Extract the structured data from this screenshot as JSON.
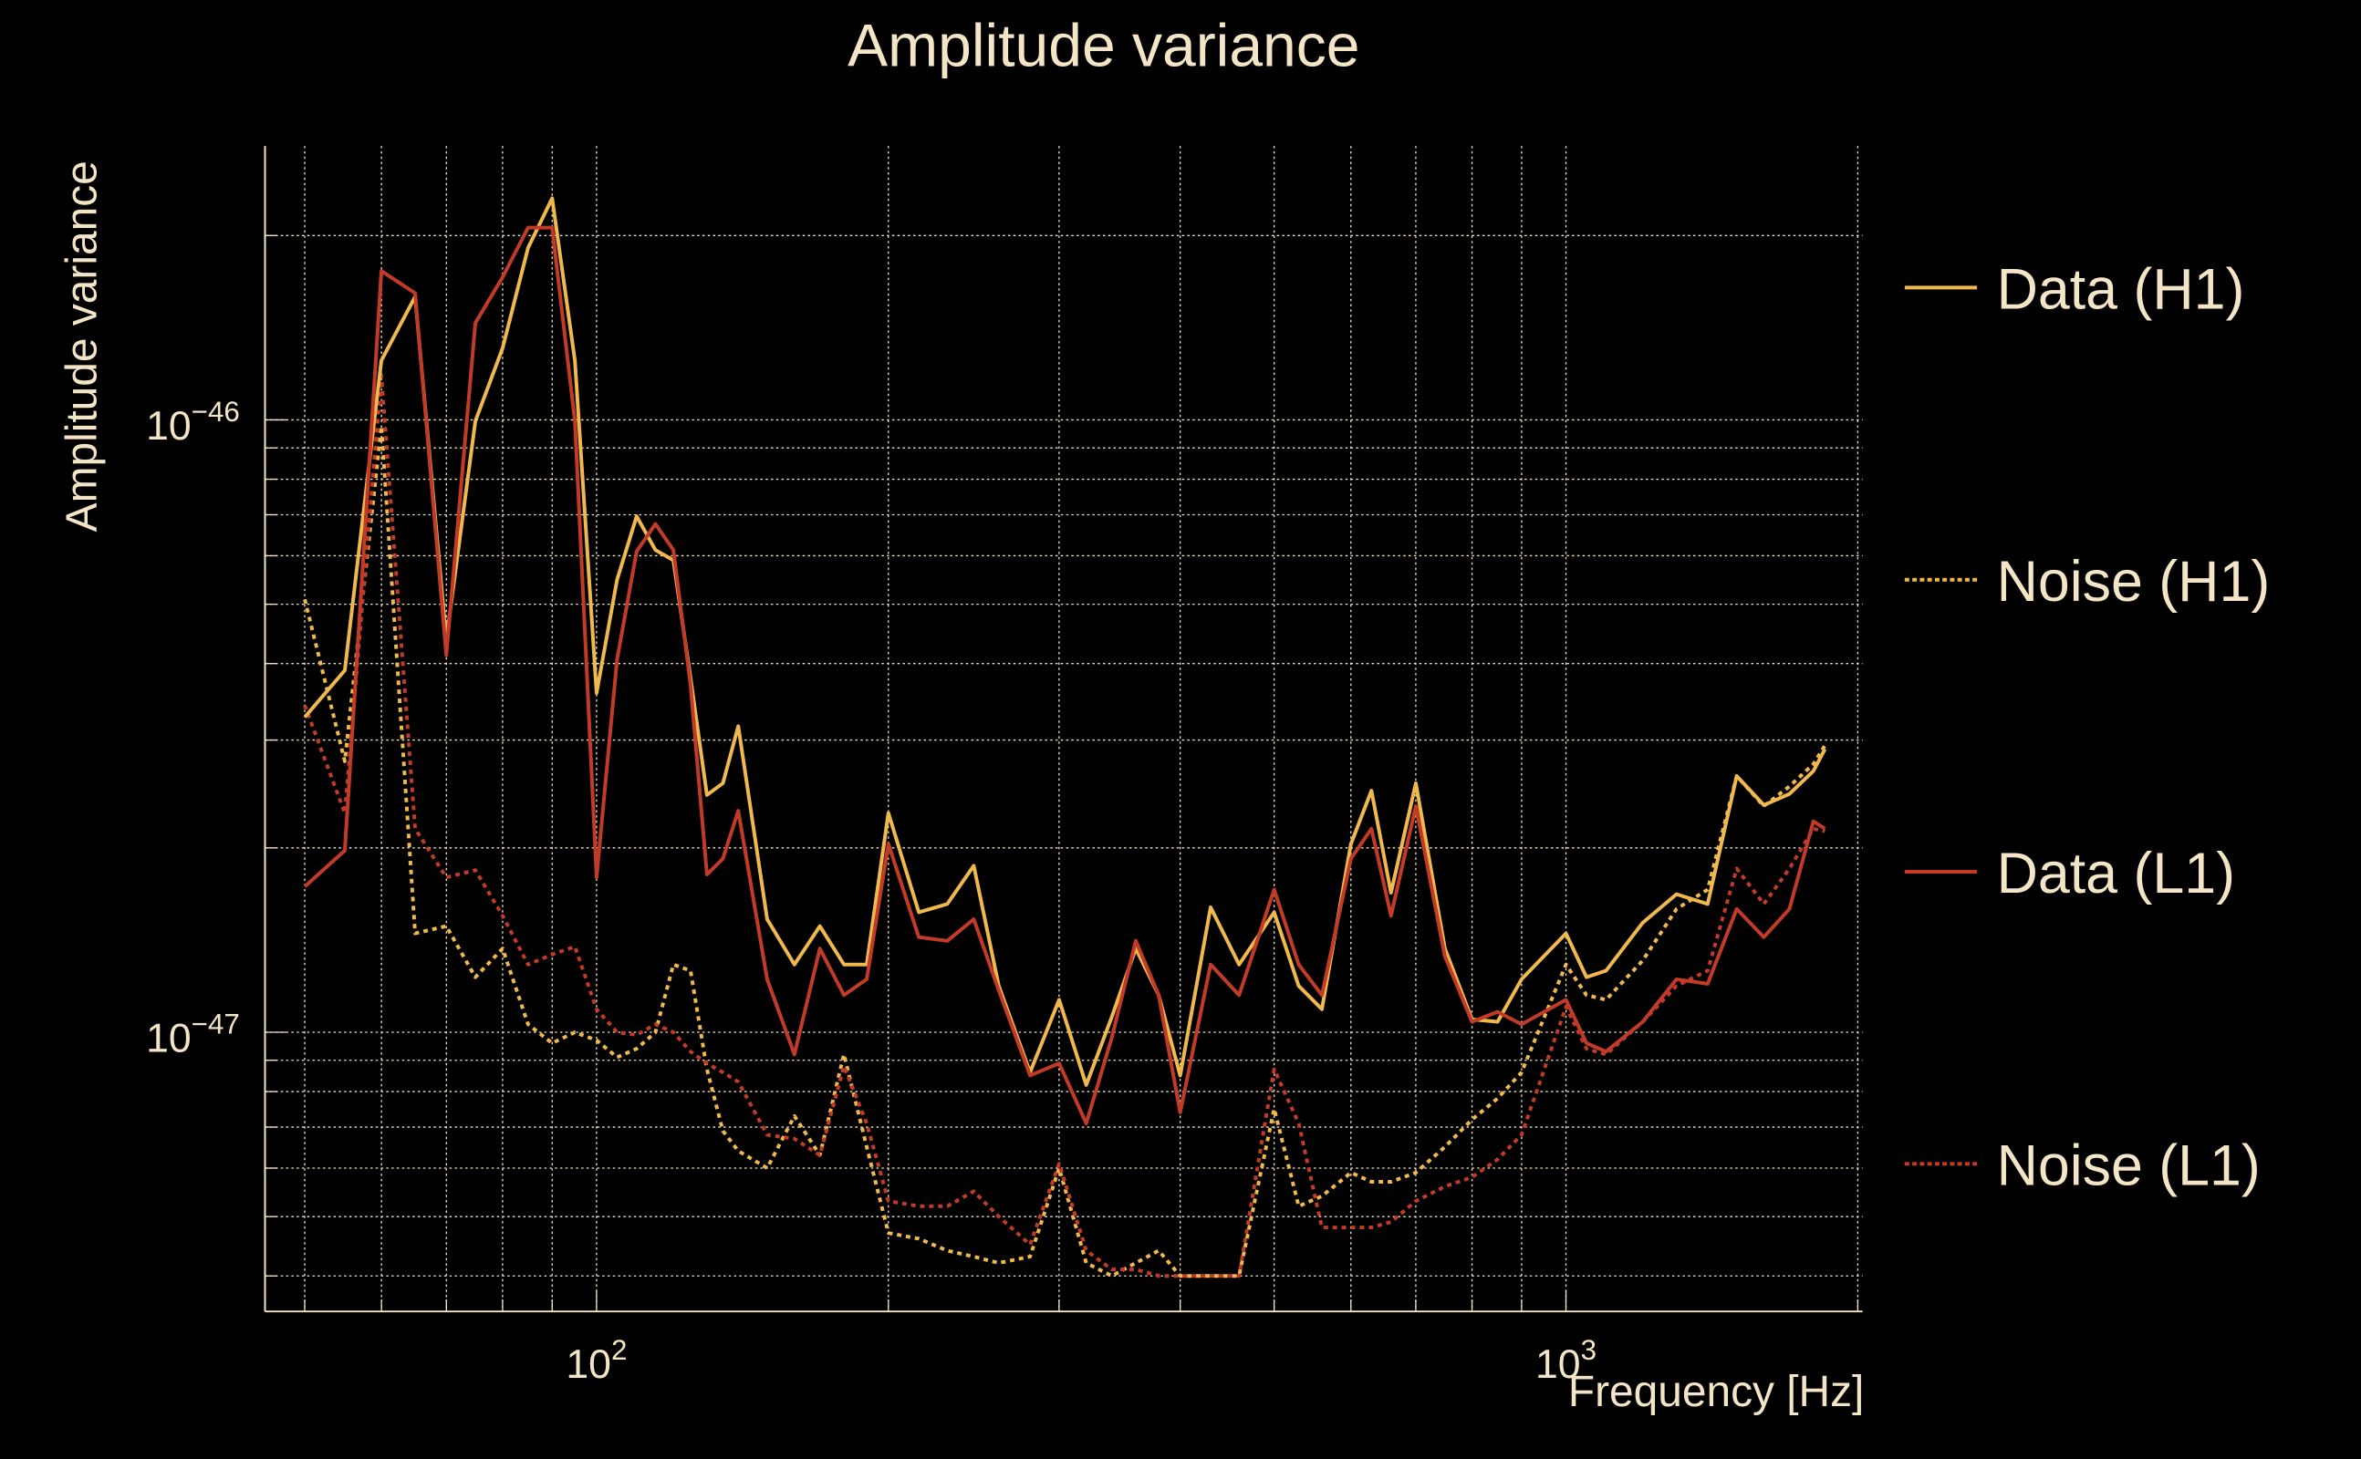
{
  "chart_data": {
    "type": "line",
    "title": "Amplitude variance",
    "xlabel": "Frequency [Hz]",
    "ylabel": "Amplitude variance",
    "xscale": "log",
    "yscale": "log",
    "xlim": [
      45.5,
      2023
    ],
    "ylim": [
      3.5e-48,
      2.8e-46
    ],
    "grid": true,
    "legend_position": "right",
    "x_ticks": [
      {
        "value": 100,
        "base": "10",
        "exp": "2"
      },
      {
        "value": 1000,
        "base": "10",
        "exp": "3"
      }
    ],
    "y_ticks": [
      {
        "value": 1e-46,
        "base": "10",
        "exp": "−46"
      },
      {
        "value": 1e-47,
        "base": "10",
        "exp": "−47"
      }
    ],
    "x": [
      50,
      55,
      60,
      65,
      70,
      75,
      80,
      85,
      90,
      95,
      100,
      105,
      110,
      115,
      120,
      125,
      130,
      135,
      140,
      150,
      160,
      170,
      180,
      190,
      200,
      215,
      230,
      245,
      260,
      280,
      300,
      320,
      340,
      360,
      380,
      400,
      430,
      460,
      500,
      530,
      560,
      600,
      630,
      660,
      700,
      750,
      800,
      850,
      900,
      1000,
      1050,
      1100,
      1200,
      1300,
      1400,
      1500,
      1600,
      1700,
      1800,
      1850
    ],
    "series": [
      {
        "name": "Data (H1)",
        "color": "#f0b94d",
        "style": "solid",
        "values": [
          3.27e-47,
          3.9e-47,
          1.25e-46,
          1.59e-46,
          4.37e-47,
          9.95e-47,
          1.31e-46,
          1.91e-46,
          2.3e-46,
          1.25e-46,
          3.58e-47,
          5.48e-47,
          6.96e-47,
          6.13e-47,
          5.9e-47,
          3.79e-47,
          2.44e-47,
          2.55e-47,
          3.16e-47,
          1.53e-47,
          1.29e-47,
          1.49e-47,
          1.29e-47,
          1.29e-47,
          2.28e-47,
          1.57e-47,
          1.62e-47,
          1.87e-47,
          1.19e-47,
          8.6e-48,
          1.13e-47,
          8.2e-48,
          1.06e-47,
          1.37e-47,
          1.15e-47,
          8.5e-48,
          1.6e-47,
          1.29e-47,
          1.57e-47,
          1.19e-47,
          1.09e-47,
          2.03e-47,
          2.48e-47,
          1.69e-47,
          2.55e-47,
          1.37e-47,
          1.05e-47,
          1.04e-47,
          1.22e-47,
          1.45e-47,
          1.23e-47,
          1.26e-47,
          1.51e-47,
          1.68e-47,
          1.62e-47,
          2.62e-47,
          2.35e-47,
          2.45e-47,
          2.67e-47,
          2.9e-47
        ]
      },
      {
        "name": "Noise (H1)",
        "color": "#f0b94d",
        "style": "dotted",
        "values": [
          5.09e-47,
          2.77e-47,
          9.77e-47,
          1.45e-47,
          1.49e-47,
          1.23e-47,
          1.37e-47,
          1.03e-47,
          9.6e-48,
          1e-47,
          9.7e-48,
          9.1e-48,
          9.4e-48,
          1e-47,
          1.29e-47,
          1.26e-47,
          8.7e-48,
          6.9e-48,
          6.4e-48,
          6e-48,
          7.3e-48,
          6.3e-48,
          9.2e-48,
          6.5e-48,
          4.7e-48,
          4.6e-48,
          4.4e-48,
          4.3e-48,
          4.2e-48,
          4.3e-48,
          6e-48,
          4.2e-48,
          4e-48,
          4.2e-48,
          4.4e-48,
          4e-48,
          4e-48,
          4e-48,
          7.5e-48,
          5.2e-48,
          5.4e-48,
          5.9e-48,
          5.7e-48,
          5.7e-48,
          5.9e-48,
          6.5e-48,
          7.2e-48,
          7.8e-48,
          8.6e-48,
          1.29e-47,
          1.15e-47,
          1.13e-47,
          1.31e-47,
          1.59e-47,
          1.71e-47,
          2.62e-47,
          2.34e-47,
          2.52e-47,
          2.74e-47,
          2.94e-47
        ]
      },
      {
        "name": "Data (L1)",
        "color": "#c23a28",
        "style": "solid",
        "values": [
          1.73e-47,
          1.98e-47,
          1.75e-46,
          1.61e-46,
          4.13e-47,
          1.44e-46,
          1.71e-46,
          2.06e-46,
          2.06e-46,
          9.95e-47,
          1.79e-47,
          4.06e-47,
          6.1e-47,
          6.76e-47,
          6.13e-47,
          3.69e-47,
          1.81e-47,
          1.92e-47,
          2.3e-47,
          1.22e-47,
          9.2e-48,
          1.37e-47,
          1.15e-47,
          1.22e-47,
          2.03e-47,
          1.43e-47,
          1.41e-47,
          1.53e-47,
          1.17e-47,
          8.5e-48,
          8.9e-48,
          7.1e-48,
          9.8e-48,
          1.41e-47,
          1.15e-47,
          7.4e-48,
          1.29e-47,
          1.15e-47,
          1.71e-47,
          1.29e-47,
          1.15e-47,
          1.92e-47,
          2.15e-47,
          1.55e-47,
          2.34e-47,
          1.33e-47,
          1.04e-47,
          1.08e-47,
          1.03e-47,
          1.13e-47,
          9.6e-48,
          9.3e-48,
          1.04e-47,
          1.22e-47,
          1.2e-47,
          1.59e-47,
          1.43e-47,
          1.59e-47,
          2.21e-47,
          2.15e-47
        ]
      },
      {
        "name": "Noise (L1)",
        "color": "#c23a28",
        "style": "dotted",
        "values": [
          3.42e-47,
          2.28e-47,
          1.18e-46,
          2.15e-47,
          1.79e-47,
          1.84e-47,
          1.55e-47,
          1.29e-47,
          1.34e-47,
          1.38e-47,
          1.09e-47,
          1e-47,
          9.9e-48,
          1.03e-47,
          1e-47,
          9.3e-48,
          8.9e-48,
          8.6e-48,
          8.3e-48,
          6.8e-48,
          6.7e-48,
          6.3e-48,
          8.8e-48,
          7.1e-48,
          5.3e-48,
          5.2e-48,
          5.2e-48,
          5.5e-48,
          5e-48,
          4.5e-48,
          6.1e-48,
          4.4e-48,
          4.1e-48,
          4.1e-48,
          4e-48,
          4e-48,
          4e-48,
          4e-48,
          8.7e-48,
          7.1e-48,
          4.8e-48,
          4.8e-48,
          4.8e-48,
          4.9e-48,
          5.3e-48,
          5.6e-48,
          5.8e-48,
          6.2e-48,
          6.8e-48,
          1.1e-47,
          9.4e-48,
          9.2e-48,
          1.04e-47,
          1.19e-47,
          1.26e-47,
          1.85e-47,
          1.62e-47,
          1.85e-47,
          2.15e-47,
          2.13e-47
        ]
      }
    ]
  }
}
